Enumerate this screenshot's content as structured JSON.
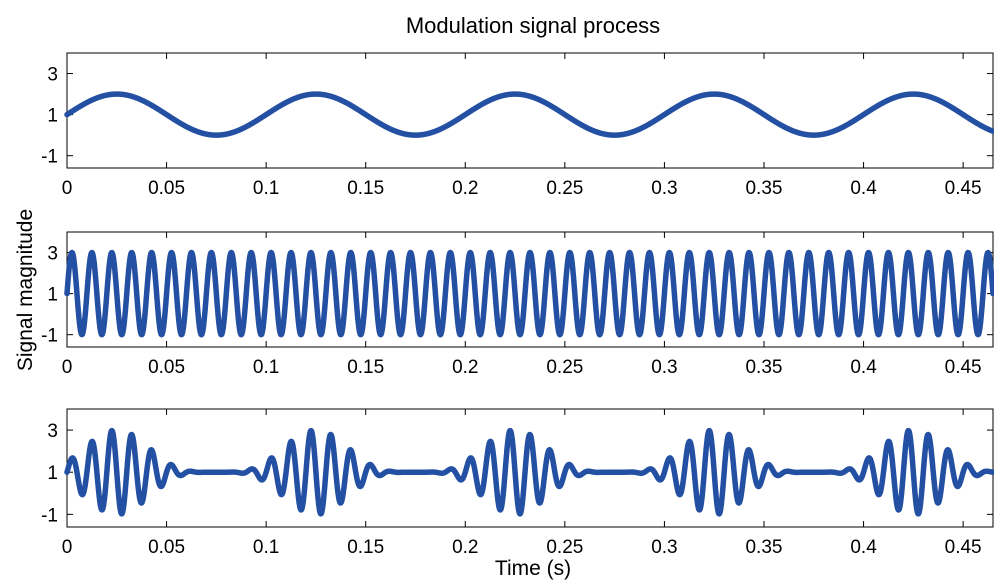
{
  "chart_data": {
    "title": "Modulation signal process",
    "ylabel": "Signal magnitude",
    "xlabel": "Time (s)",
    "line_color": "#2350A3",
    "subplots": [
      {
        "type": "line",
        "series": [
          {
            "function": "1 + sin(2*pi*10*t)"
          }
        ],
        "xlim": [
          0,
          0.465
        ],
        "ylim": [
          -1.6,
          4
        ],
        "xticks": [
          0,
          0.05,
          0.1,
          0.15,
          0.2,
          0.25,
          0.3,
          0.35,
          0.4,
          0.45
        ],
        "xtick_labels": [
          "0",
          "0.05",
          "0.1",
          "0.15",
          "0.2",
          "0.25",
          "0.3",
          "0.35",
          "0.4",
          "0.45"
        ],
        "yticks": [
          3,
          1,
          -1
        ],
        "ytick_labels": [
          "3",
          "1",
          "-1"
        ]
      },
      {
        "type": "line",
        "series": [
          {
            "function": "1 + 2*sin(2*pi*100*t)"
          }
        ],
        "xlim": [
          0,
          0.465
        ],
        "ylim": [
          -1.6,
          4
        ],
        "xticks": [
          0,
          0.05,
          0.1,
          0.15,
          0.2,
          0.25,
          0.3,
          0.35,
          0.4,
          0.45
        ],
        "xtick_labels": [
          "0",
          "0.05",
          "0.1",
          "0.15",
          "0.2",
          "0.25",
          "0.3",
          "0.35",
          "0.4",
          "0.45"
        ],
        "yticks": [
          3,
          1,
          -1
        ],
        "ytick_labels": [
          "3",
          "1",
          "-1"
        ]
      },
      {
        "type": "line",
        "series": [
          {
            "function": "1 + 2*((1 + sin(2*pi*10*t))/2)^2 * sin(2*pi*100*t)"
          }
        ],
        "xlim": [
          0,
          0.465
        ],
        "ylim": [
          -1.6,
          4
        ],
        "xticks": [
          0,
          0.05,
          0.1,
          0.15,
          0.2,
          0.25,
          0.3,
          0.35,
          0.4,
          0.45
        ],
        "xtick_labels": [
          "0",
          "0.05",
          "0.1",
          "0.15",
          "0.2",
          "0.25",
          "0.3",
          "0.35",
          "0.4",
          "0.45"
        ],
        "yticks": [
          3,
          1,
          -1
        ],
        "ytick_labels": [
          "3",
          "1",
          "-1"
        ]
      }
    ]
  }
}
